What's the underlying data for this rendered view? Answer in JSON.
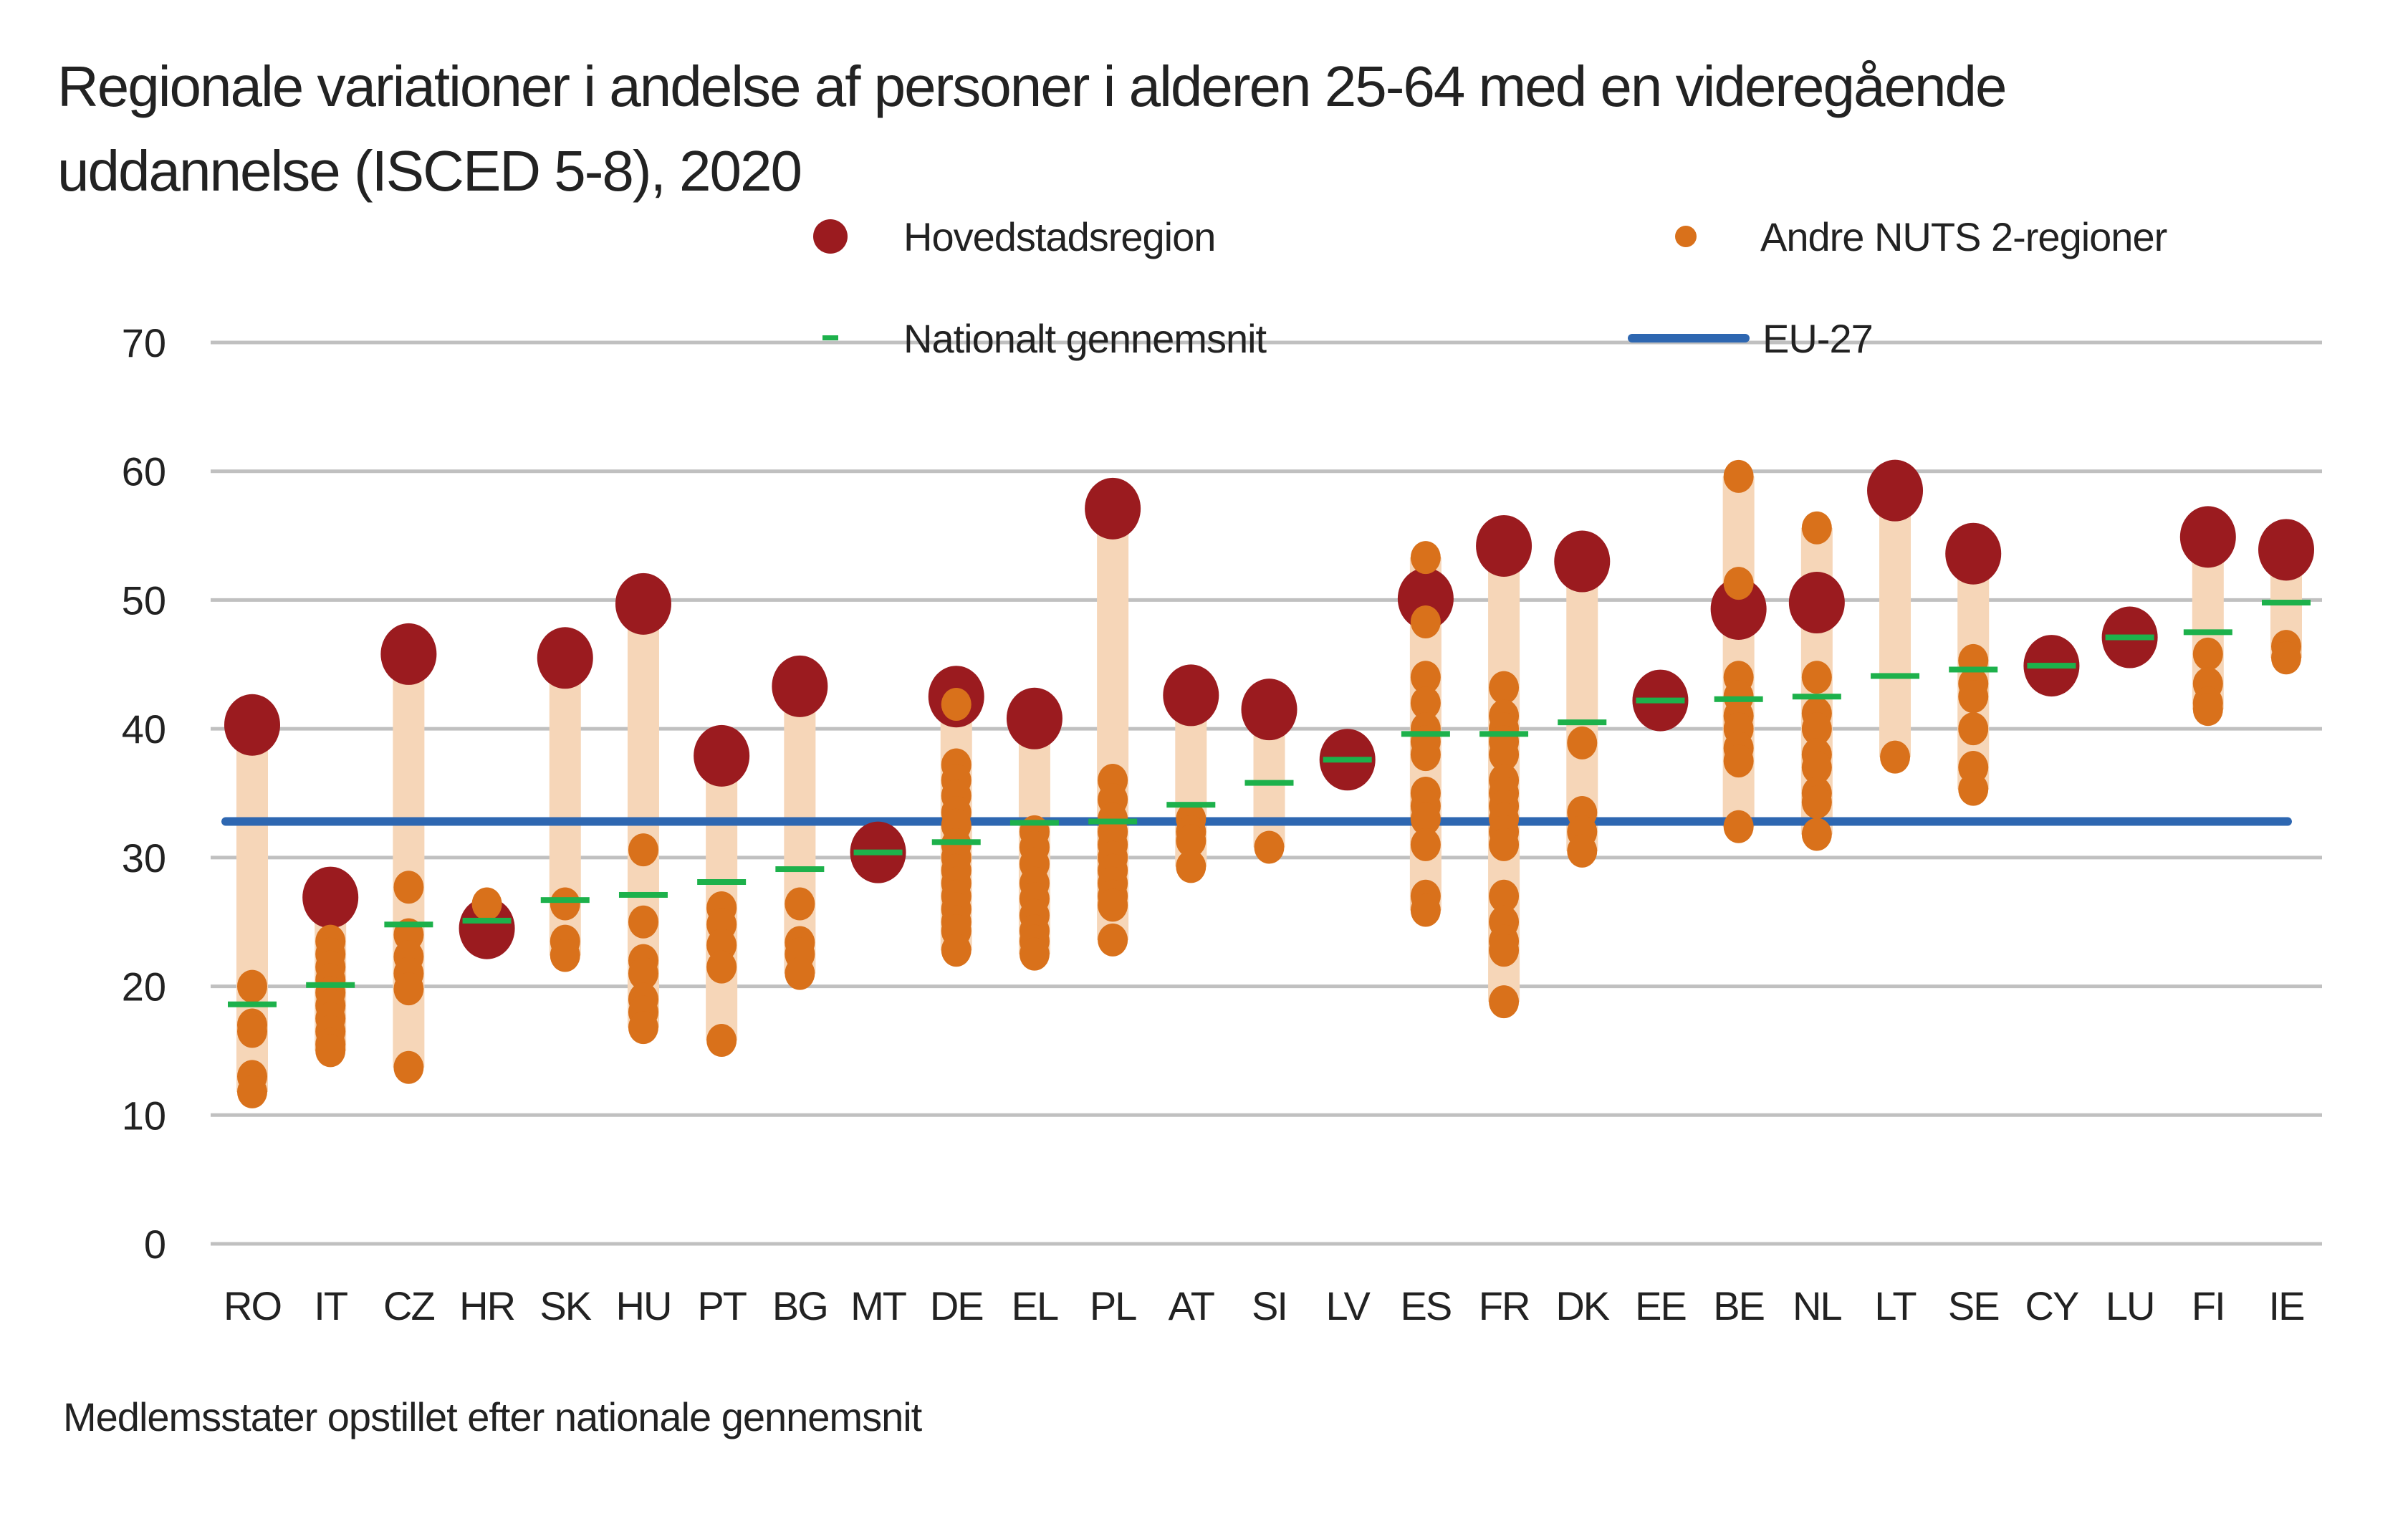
{
  "chart_data": {
    "type": "scatter",
    "title": "Regionale variationer i andelse af personer i alderen 25-64 med en videregående uddannelse (ISCED 5-8), 2020",
    "footnote": "Medlemsstater opstillet efter nationale gennemsnit",
    "ylim": [
      0,
      70
    ],
    "yticks": [
      "0",
      "10",
      "20",
      "30",
      "40",
      "50",
      "60",
      "70"
    ],
    "grid": true,
    "legend_placement": "top",
    "legend": {
      "capital": "Hovedstadsregion",
      "other": "Andre NUTS 2-regioner",
      "national": "Nationalt gennemsnit",
      "eu": "EU-27"
    },
    "eu27": 32.8,
    "colors": {
      "capital": "#9b1b1f",
      "other": "#d9711b",
      "range": "#f6d6b8",
      "national": "#1db14b",
      "eu": "#2e67b1",
      "grid": "#c0c0c0"
    },
    "countries": [
      {
        "code": "RO",
        "capital": 40.3,
        "national": 18.6,
        "others": [
          20,
          17,
          16.5,
          13,
          11.8
        ]
      },
      {
        "code": "IT",
        "capital": 26.9,
        "national": 20.1,
        "others": [
          23.5,
          22.5,
          21.5,
          20.5,
          19.5,
          18.5,
          17.5,
          16.5,
          15.5,
          15
        ]
      },
      {
        "code": "CZ",
        "capital": 45.8,
        "national": 24.8,
        "others": [
          27.7,
          24,
          22.3,
          21,
          19.8,
          13.7
        ]
      },
      {
        "code": "HR",
        "capital": 24.5,
        "national": 25.1,
        "others": [
          26.4
        ]
      },
      {
        "code": "SK",
        "capital": 45.5,
        "national": 26.7,
        "others": [
          26.4,
          23.5,
          22.4
        ]
      },
      {
        "code": "HU",
        "capital": 49.7,
        "national": 27.1,
        "others": [
          30.6,
          25,
          22,
          21,
          19,
          18,
          16.8
        ]
      },
      {
        "code": "PT",
        "capital": 37.9,
        "national": 28.1,
        "others": [
          26.1,
          24.8,
          23.2,
          21.5,
          15.8
        ]
      },
      {
        "code": "BG",
        "capital": 43.3,
        "national": 29.1,
        "others": [
          26.4,
          23.4,
          22.5,
          21
        ]
      },
      {
        "code": "MT",
        "capital": 30.4,
        "national": 30.4,
        "others": []
      },
      {
        "code": "DE",
        "capital": 42.5,
        "national": 31.2,
        "others": [
          41.9,
          37.2,
          36,
          34.8,
          33.5,
          32.5,
          31,
          30,
          29,
          28,
          27,
          26,
          25,
          24.3,
          22.8
        ]
      },
      {
        "code": "EL",
        "capital": 40.8,
        "national": 32.7,
        "others": [
          32,
          30.8,
          29.5,
          28,
          26.8,
          25.5,
          24.3,
          23.5,
          22.5
        ]
      },
      {
        "code": "PL",
        "capital": 57.1,
        "national": 32.8,
        "others": [
          36,
          34.5,
          33,
          32,
          31,
          30,
          29,
          28,
          27,
          26.3,
          23.6
        ]
      },
      {
        "code": "AT",
        "capital": 42.6,
        "national": 34.1,
        "others": [
          33,
          32,
          31.3,
          29.3
        ]
      },
      {
        "code": "SI",
        "capital": 41.5,
        "national": 35.8,
        "others": [
          30.8
        ]
      },
      {
        "code": "LV",
        "capital": 37.6,
        "national": 37.6,
        "others": []
      },
      {
        "code": "ES",
        "capital": 50.1,
        "national": 39.6,
        "others": [
          53.3,
          48.3,
          44,
          42,
          40,
          39,
          38,
          35,
          34,
          33,
          31,
          27,
          25.9
        ]
      },
      {
        "code": "FR",
        "capital": 54.2,
        "national": 39.6,
        "others": [
          43.2,
          41,
          40,
          39,
          38,
          36,
          35,
          34,
          33,
          32,
          31,
          27,
          25,
          23.5,
          22.8,
          18.8
        ]
      },
      {
        "code": "DK",
        "capital": 53.0,
        "national": 40.5,
        "others": [
          38.9,
          33.5,
          32,
          30.5
        ]
      },
      {
        "code": "EE",
        "capital": 42.2,
        "national": 42.2,
        "others": []
      },
      {
        "code": "BE",
        "capital": 49.3,
        "national": 42.3,
        "others": [
          59.6,
          51.3,
          44,
          42.5,
          41,
          40,
          38.5,
          37.5,
          32.4
        ]
      },
      {
        "code": "NL",
        "capital": 49.8,
        "national": 42.5,
        "others": [
          55.6,
          44,
          41.2,
          40,
          38,
          37,
          35,
          34.3,
          31.8
        ]
      },
      {
        "code": "LT",
        "capital": 58.5,
        "national": 44.1,
        "others": [
          37.8
        ]
      },
      {
        "code": "SE",
        "capital": 53.6,
        "national": 44.6,
        "others": [
          45.3,
          43.5,
          42.5,
          40,
          37,
          35.3
        ]
      },
      {
        "code": "CY",
        "capital": 44.9,
        "national": 44.9,
        "others": []
      },
      {
        "code": "LU",
        "capital": 47.1,
        "national": 47.1,
        "others": []
      },
      {
        "code": "FI",
        "capital": 54.9,
        "national": 47.5,
        "others": [
          45.8,
          43.5,
          42,
          41.5
        ]
      },
      {
        "code": "IE",
        "capital": 53.9,
        "national": 49.8,
        "others": [
          46.4,
          45.5
        ]
      }
    ]
  }
}
